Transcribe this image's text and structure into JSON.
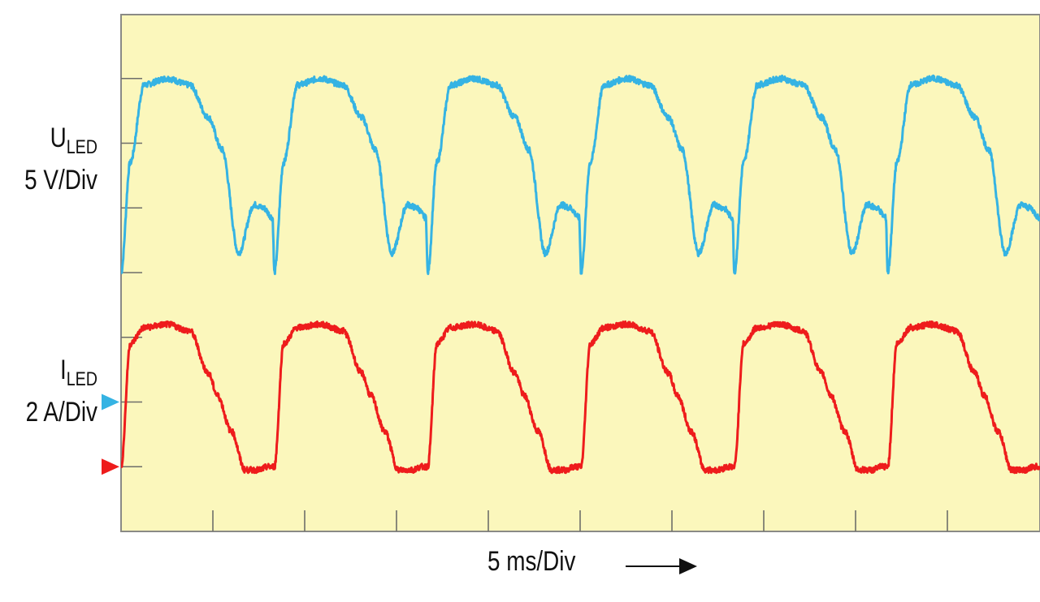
{
  "chart_data": {
    "type": "line",
    "title": "",
    "background_color": "#fbf7bc",
    "grid": false,
    "x_axis": {
      "label": "5 ms/Div",
      "divisions": 10,
      "direction_arrow": true
    },
    "y_axis": {
      "divisions": 8
    },
    "series": [
      {
        "name": "ULED",
        "name_main": "U",
        "name_sub": "LED",
        "scale": "5 V/Div",
        "color": "#35b3e3",
        "ground_marker_color": "#35b3e3",
        "ground_level_div": 2,
        "period_div": 1.67,
        "x_div": [
          0.0,
          0.1,
          0.25,
          0.5,
          0.75,
          0.95,
          1.1,
          1.28,
          1.45,
          1.55,
          1.65,
          1.67
        ],
        "y_div": [
          4.0,
          5.7,
          6.9,
          7.0,
          6.9,
          6.4,
          5.9,
          4.3,
          5.05,
          5.0,
          4.85,
          4.0
        ]
      },
      {
        "name": "ILED",
        "name_main": "I",
        "name_sub": "LED",
        "scale": "2 A/Div",
        "color": "#ee1c1c",
        "ground_marker_color": "#ee1c1c",
        "ground_level_div": 1,
        "period_div": 1.67,
        "x_div": [
          0.0,
          0.1,
          0.25,
          0.5,
          0.75,
          0.95,
          1.05,
          1.2,
          1.35,
          1.5,
          1.6,
          1.67
        ],
        "y_div": [
          1.0,
          2.9,
          3.15,
          3.2,
          3.1,
          2.45,
          2.1,
          1.55,
          0.95,
          0.95,
          1.0,
          1.0
        ]
      }
    ]
  }
}
